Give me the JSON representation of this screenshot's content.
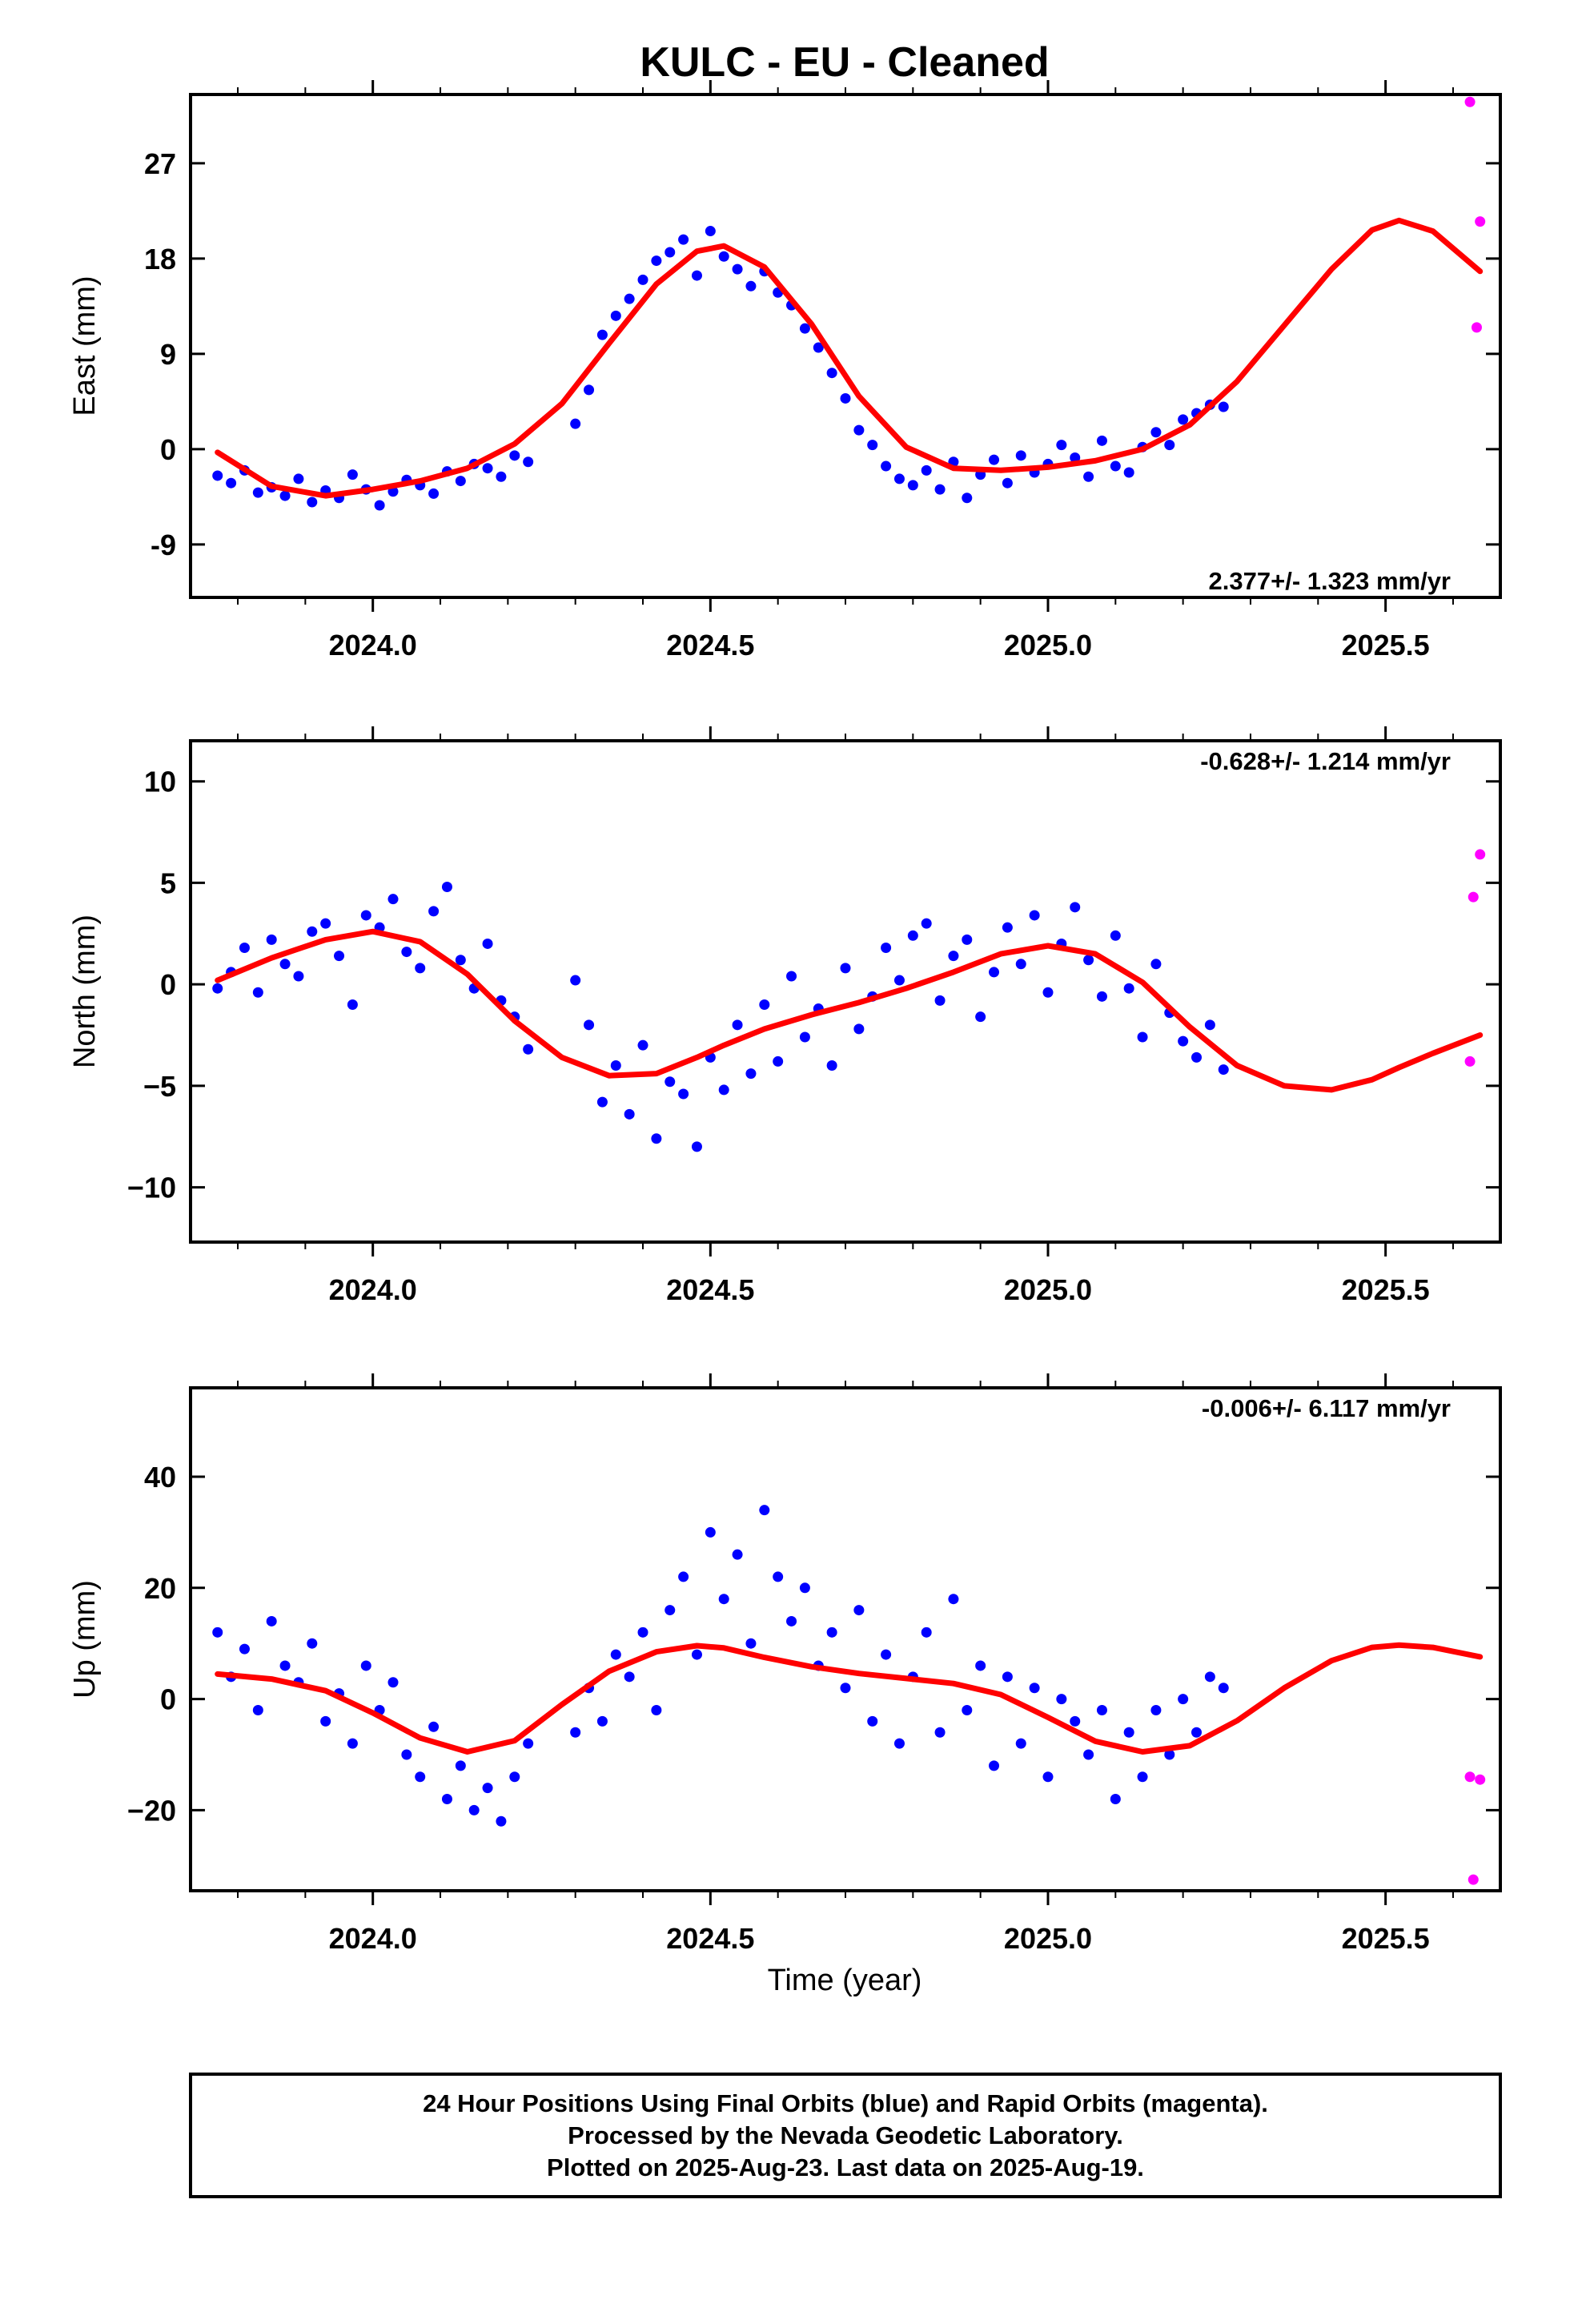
{
  "title": "KULC  - EU - Cleaned",
  "xlabel": "Time (year)",
  "colors": {
    "final": "#0000ff",
    "rapid": "#ff00ff",
    "model": "#ff0000",
    "frame": "#000000"
  },
  "footer": [
    "24 Hour Positions Using Final Orbits (blue) and Rapid Orbits (magenta).",
    "Processed by the Nevada Geodetic Laboratory.",
    "Plotted on 2025-Aug-23. Last data on 2025-Aug-19."
  ],
  "chart_data": [
    {
      "type": "scatter",
      "ylabel": "East (mm)",
      "xlim": [
        2023.73,
        2025.67
      ],
      "ylim": [
        -14,
        33.5
      ],
      "yticks": [
        -9,
        0,
        9,
        18,
        27
      ],
      "xticks": [
        2024.0,
        2024.5,
        2025.0,
        2025.5
      ],
      "xtick_labels": [
        "2024.0",
        "2024.5",
        "2025.0",
        "2025.5"
      ],
      "rate": "2.377+/- 1.323 mm/yr",
      "rate_position": "bottom-right",
      "series": [
        {
          "style": "points",
          "color": "#0000ff",
          "x": [
            2023.77,
            2023.79,
            2023.81,
            2023.83,
            2023.85,
            2023.87,
            2023.89,
            2023.91,
            2023.93,
            2023.95,
            2023.97,
            2023.99,
            2024.01,
            2024.03,
            2024.05,
            2024.07,
            2024.09,
            2024.11,
            2024.13,
            2024.15,
            2024.17,
            2024.19,
            2024.21,
            2024.23,
            2024.3,
            2024.32,
            2024.34,
            2024.36,
            2024.38,
            2024.4,
            2024.42,
            2024.44,
            2024.46,
            2024.48,
            2024.5,
            2024.52,
            2024.54,
            2024.56,
            2024.58,
            2024.6,
            2024.62,
            2024.64,
            2024.66,
            2024.68,
            2024.7,
            2024.72,
            2024.74,
            2024.76,
            2024.78,
            2024.8,
            2024.82,
            2024.84,
            2024.86,
            2024.88,
            2024.9,
            2024.92,
            2024.94,
            2024.96,
            2024.98,
            2025.0,
            2025.02,
            2025.04,
            2025.06,
            2025.08,
            2025.1,
            2025.12,
            2025.14,
            2025.16,
            2025.18,
            2025.2,
            2025.22,
            2025.24,
            2025.26
          ],
          "y": [
            -2.5,
            -3.2,
            -2.0,
            -4.1,
            -3.6,
            -4.4,
            -2.8,
            -5.0,
            -3.9,
            -4.6,
            -2.4,
            -3.8,
            -5.3,
            -4.0,
            -2.9,
            -3.4,
            -4.2,
            -2.1,
            -3.0,
            -1.4,
            -1.8,
            -2.6,
            -0.6,
            -1.2,
            2.4,
            5.6,
            10.8,
            12.6,
            14.2,
            16.0,
            17.8,
            18.6,
            19.8,
            16.4,
            20.6,
            18.2,
            17.0,
            15.4,
            16.8,
            14.8,
            13.6,
            11.4,
            9.6,
            7.2,
            4.8,
            1.8,
            0.4,
            -1.6,
            -2.8,
            -3.4,
            -2.0,
            -3.8,
            -1.2,
            -4.6,
            -2.4,
            -1.0,
            -3.2,
            -0.6,
            -2.2,
            -1.4,
            0.4,
            -0.8,
            -2.6,
            0.8,
            -1.6,
            -2.2,
            0.2,
            1.6,
            0.4,
            2.8,
            3.4,
            4.2,
            4.0
          ]
        },
        {
          "style": "points",
          "color": "#ff00ff",
          "x": [
            2025.625,
            2025.635,
            2025.64
          ],
          "y": [
            32.8,
            11.5,
            21.5
          ]
        },
        {
          "style": "line",
          "color": "#ff0000",
          "x": [
            2023.77,
            2023.85,
            2023.93,
            2024.0,
            2024.07,
            2024.14,
            2024.21,
            2024.28,
            2024.35,
            2024.42,
            2024.48,
            2024.52,
            2024.58,
            2024.65,
            2024.72,
            2024.79,
            2024.86,
            2024.93,
            2025.0,
            2025.07,
            2025.14,
            2025.21,
            2025.28,
            2025.35,
            2025.42,
            2025.48,
            2025.52,
            2025.57,
            2025.64
          ],
          "y": [
            -0.3,
            -3.5,
            -4.4,
            -3.8,
            -3.0,
            -1.8,
            0.5,
            4.3,
            10.0,
            15.6,
            18.7,
            19.2,
            17.2,
            11.8,
            5.0,
            0.2,
            -1.8,
            -2.0,
            -1.7,
            -1.1,
            0.0,
            2.3,
            6.4,
            11.7,
            17.0,
            20.7,
            21.6,
            20.6,
            16.8
          ]
        }
      ]
    },
    {
      "type": "scatter",
      "ylabel": "North (mm)",
      "xlim": [
        2023.73,
        2025.67
      ],
      "ylim": [
        -12.7,
        12
      ],
      "yticks": [
        -10,
        -5,
        0,
        5,
        10
      ],
      "yticks_labels": [
        "−10",
        "−5",
        "0",
        "5",
        "10"
      ],
      "xticks": [
        2024.0,
        2024.5,
        2025.0,
        2025.5
      ],
      "xtick_labels": [
        "2024.0",
        "2024.5",
        "2025.0",
        "2025.5"
      ],
      "rate": "-0.628+/- 1.214 mm/yr",
      "rate_position": "top-right",
      "series": [
        {
          "style": "points",
          "color": "#0000ff",
          "x": [
            2023.77,
            2023.79,
            2023.81,
            2023.83,
            2023.85,
            2023.87,
            2023.89,
            2023.91,
            2023.93,
            2023.95,
            2023.97,
            2023.99,
            2024.01,
            2024.03,
            2024.05,
            2024.07,
            2024.09,
            2024.11,
            2024.13,
            2024.15,
            2024.17,
            2024.19,
            2024.21,
            2024.23,
            2024.3,
            2024.32,
            2024.34,
            2024.36,
            2024.38,
            2024.4,
            2024.42,
            2024.44,
            2024.46,
            2024.48,
            2024.5,
            2024.52,
            2024.54,
            2024.56,
            2024.58,
            2024.6,
            2024.62,
            2024.64,
            2024.66,
            2024.68,
            2024.7,
            2024.72,
            2024.74,
            2024.76,
            2024.78,
            2024.8,
            2024.82,
            2024.84,
            2024.86,
            2024.88,
            2024.9,
            2024.92,
            2024.94,
            2024.96,
            2024.98,
            2025.0,
            2025.02,
            2025.04,
            2025.06,
            2025.08,
            2025.1,
            2025.12,
            2025.14,
            2025.16,
            2025.18,
            2025.2,
            2025.22,
            2025.24,
            2025.26
          ],
          "y": [
            -0.2,
            0.6,
            1.8,
            -0.4,
            2.2,
            1.0,
            0.4,
            2.6,
            3.0,
            1.4,
            -1.0,
            3.4,
            2.8,
            4.2,
            1.6,
            0.8,
            3.6,
            4.8,
            1.2,
            -0.2,
            2.0,
            -0.8,
            -1.6,
            -3.2,
            0.2,
            -2.0,
            -5.8,
            -4.0,
            -6.4,
            -3.0,
            -7.6,
            -4.8,
            -5.4,
            -8.0,
            -3.6,
            -5.2,
            -2.0,
            -4.4,
            -1.0,
            -3.8,
            0.4,
            -2.6,
            -1.2,
            -4.0,
            0.8,
            -2.2,
            -0.6,
            1.8,
            0.2,
            2.4,
            3.0,
            -0.8,
            1.4,
            2.2,
            -1.6,
            0.6,
            2.8,
            1.0,
            3.4,
            -0.4,
            2.0,
            3.8,
            1.2,
            -0.6,
            2.4,
            -0.2,
            -2.6,
            1.0,
            -1.4,
            -2.8,
            -3.6,
            -2.0,
            -4.2
          ]
        },
        {
          "style": "points",
          "color": "#ff00ff",
          "x": [
            2025.625,
            2025.63,
            2025.64
          ],
          "y": [
            -3.8,
            4.3,
            6.4
          ]
        },
        {
          "style": "line",
          "color": "#ff0000",
          "x": [
            2023.77,
            2023.85,
            2023.93,
            2024.0,
            2024.07,
            2024.14,
            2024.21,
            2024.28,
            2024.35,
            2024.42,
            2024.48,
            2024.52,
            2024.58,
            2024.65,
            2024.72,
            2024.79,
            2024.86,
            2024.93,
            2025.0,
            2025.07,
            2025.14,
            2025.21,
            2025.28,
            2025.35,
            2025.42,
            2025.48,
            2025.52,
            2025.57,
            2025.64
          ],
          "y": [
            0.2,
            1.3,
            2.2,
            2.6,
            2.1,
            0.5,
            -1.8,
            -3.6,
            -4.5,
            -4.4,
            -3.6,
            -3.0,
            -2.2,
            -1.5,
            -0.9,
            -0.2,
            0.6,
            1.5,
            1.9,
            1.5,
            0.1,
            -2.1,
            -4.0,
            -5.0,
            -5.2,
            -4.7,
            -4.1,
            -3.4,
            -2.5
          ]
        }
      ]
    },
    {
      "type": "scatter",
      "ylabel": "Up (mm)",
      "xlim": [
        2023.73,
        2025.67
      ],
      "ylim": [
        -34.5,
        56
      ],
      "yticks": [
        -20,
        0,
        20,
        40
      ],
      "yticks_labels": [
        "−20",
        "0",
        "20",
        "40"
      ],
      "xticks": [
        2024.0,
        2024.5,
        2025.0,
        2025.5
      ],
      "xtick_labels": [
        "2024.0",
        "2024.5",
        "2025.0",
        "2025.5"
      ],
      "rate": "-0.006+/- 6.117 mm/yr",
      "rate_position": "top-right",
      "series": [
        {
          "style": "points",
          "color": "#0000ff",
          "x": [
            2023.77,
            2023.79,
            2023.81,
            2023.83,
            2023.85,
            2023.87,
            2023.89,
            2023.91,
            2023.93,
            2023.95,
            2023.97,
            2023.99,
            2024.01,
            2024.03,
            2024.05,
            2024.07,
            2024.09,
            2024.11,
            2024.13,
            2024.15,
            2024.17,
            2024.19,
            2024.21,
            2024.23,
            2024.3,
            2024.32,
            2024.34,
            2024.36,
            2024.38,
            2024.4,
            2024.42,
            2024.44,
            2024.46,
            2024.48,
            2024.5,
            2024.52,
            2024.54,
            2024.56,
            2024.58,
            2024.6,
            2024.62,
            2024.64,
            2024.66,
            2024.68,
            2024.7,
            2024.72,
            2024.74,
            2024.76,
            2024.78,
            2024.8,
            2024.82,
            2024.84,
            2024.86,
            2024.88,
            2024.9,
            2024.92,
            2024.94,
            2024.96,
            2024.98,
            2025.0,
            2025.02,
            2025.04,
            2025.06,
            2025.08,
            2025.1,
            2025.12,
            2025.14,
            2025.16,
            2025.18,
            2025.2,
            2025.22,
            2025.24,
            2025.26
          ],
          "y": [
            12,
            4,
            9,
            -2,
            14,
            6,
            3,
            10,
            -4,
            1,
            -8,
            6,
            -2,
            3,
            -10,
            -14,
            -5,
            -18,
            -12,
            -20,
            -16,
            -22,
            -14,
            -8,
            -6,
            2,
            -4,
            8,
            4,
            12,
            -2,
            16,
            22,
            8,
            30,
            18,
            26,
            10,
            34,
            22,
            14,
            20,
            6,
            12,
            2,
            16,
            -4,
            8,
            -8,
            4,
            12,
            -6,
            18,
            -2,
            6,
            -12,
            4,
            -8,
            2,
            -14,
            0,
            -4,
            -10,
            -2,
            -18,
            -6,
            -14,
            -2,
            -10,
            0,
            -6,
            4,
            2
          ]
        },
        {
          "style": "points",
          "color": "#ff00ff",
          "x": [
            2025.625,
            2025.63,
            2025.64
          ],
          "y": [
            -14,
            -32.5,
            -14.5
          ]
        },
        {
          "style": "line",
          "color": "#ff0000",
          "x": [
            2023.77,
            2023.85,
            2023.93,
            2024.0,
            2024.07,
            2024.14,
            2024.21,
            2024.28,
            2024.35,
            2024.42,
            2024.48,
            2024.52,
            2024.58,
            2024.65,
            2024.72,
            2024.79,
            2024.86,
            2024.93,
            2025.0,
            2025.07,
            2025.14,
            2025.21,
            2025.28,
            2025.35,
            2025.42,
            2025.48,
            2025.52,
            2025.57,
            2025.64
          ],
          "y": [
            4.5,
            3.6,
            1.5,
            -2.5,
            -7.0,
            -9.5,
            -7.5,
            -1.0,
            5.0,
            8.5,
            9.6,
            9.2,
            7.5,
            5.8,
            4.6,
            3.7,
            2.8,
            0.8,
            -3.3,
            -7.6,
            -9.5,
            -8.4,
            -3.9,
            2.0,
            6.9,
            9.3,
            9.7,
            9.3,
            7.6
          ]
        }
      ]
    }
  ]
}
